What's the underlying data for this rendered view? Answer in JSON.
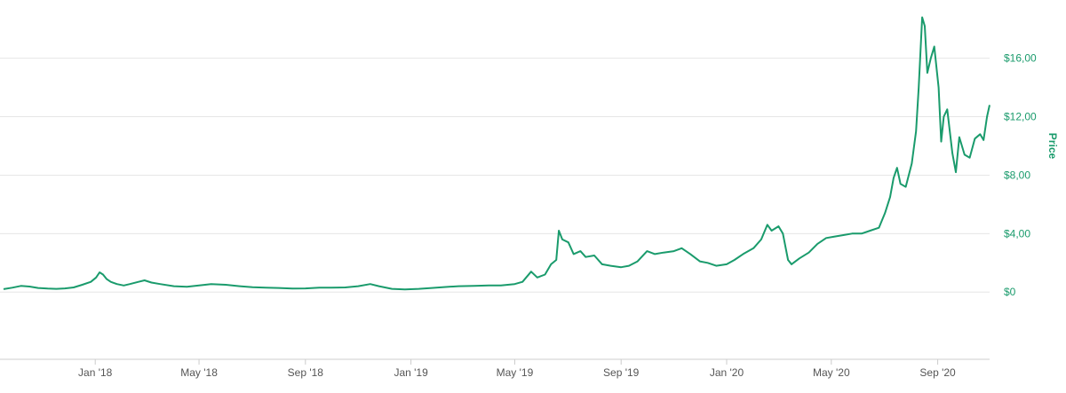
{
  "chart_data": {
    "type": "line",
    "title": "",
    "xlabel": "",
    "ylabel": "Price",
    "ylim": [
      -4.6,
      19.5
    ],
    "xlim": [
      "2017-09-17",
      "2020-10-31"
    ],
    "grid": true,
    "legend": "none",
    "colors": {
      "line": "#1a9b6c",
      "y_axis_text": "#1a9b6c",
      "grid": "#e6e6e6",
      "x_axis_text": "#555555",
      "axis_line": "#cccccc"
    },
    "x_ticks": [
      {
        "date": "2018-01-01",
        "label": "Jan '18"
      },
      {
        "date": "2018-05-01",
        "label": "May '18"
      },
      {
        "date": "2018-09-01",
        "label": "Sep '18"
      },
      {
        "date": "2019-01-01",
        "label": "Jan '19"
      },
      {
        "date": "2019-05-01",
        "label": "May '19"
      },
      {
        "date": "2019-09-01",
        "label": "Sep '19"
      },
      {
        "date": "2020-01-01",
        "label": "Jan '20"
      },
      {
        "date": "2020-05-01",
        "label": "May '20"
      },
      {
        "date": "2020-09-01",
        "label": "Sep '20"
      }
    ],
    "y_ticks": [
      {
        "value": 0,
        "label": "$0"
      },
      {
        "value": 4,
        "label": "$4,00"
      },
      {
        "value": 8,
        "label": "$8,00"
      },
      {
        "value": 12,
        "label": "$12,00"
      },
      {
        "value": 16,
        "label": "$16,00"
      }
    ],
    "series": [
      {
        "points": [
          [
            "2017-09-17",
            0.2
          ],
          [
            "2017-09-27",
            0.3
          ],
          [
            "2017-10-07",
            0.42
          ],
          [
            "2017-10-17",
            0.38
          ],
          [
            "2017-10-27",
            0.28
          ],
          [
            "2017-11-07",
            0.24
          ],
          [
            "2017-11-17",
            0.22
          ],
          [
            "2017-11-27",
            0.25
          ],
          [
            "2017-12-07",
            0.32
          ],
          [
            "2017-12-17",
            0.5
          ],
          [
            "2017-12-27",
            0.7
          ],
          [
            "2018-01-02",
            1.0
          ],
          [
            "2018-01-06",
            1.35
          ],
          [
            "2018-01-10",
            1.2
          ],
          [
            "2018-01-14",
            0.9
          ],
          [
            "2018-01-19",
            0.7
          ],
          [
            "2018-01-26",
            0.55
          ],
          [
            "2018-02-03",
            0.45
          ],
          [
            "2018-02-10",
            0.55
          ],
          [
            "2018-02-20",
            0.7
          ],
          [
            "2018-02-27",
            0.8
          ],
          [
            "2018-03-07",
            0.65
          ],
          [
            "2018-03-17",
            0.55
          ],
          [
            "2018-04-02",
            0.4
          ],
          [
            "2018-04-17",
            0.36
          ],
          [
            "2018-05-01",
            0.45
          ],
          [
            "2018-05-15",
            0.55
          ],
          [
            "2018-06-01",
            0.5
          ],
          [
            "2018-06-17",
            0.4
          ],
          [
            "2018-07-02",
            0.33
          ],
          [
            "2018-07-17",
            0.3
          ],
          [
            "2018-08-01",
            0.28
          ],
          [
            "2018-08-17",
            0.24
          ],
          [
            "2018-09-01",
            0.25
          ],
          [
            "2018-09-17",
            0.3
          ],
          [
            "2018-10-01",
            0.3
          ],
          [
            "2018-10-17",
            0.32
          ],
          [
            "2018-11-01",
            0.4
          ],
          [
            "2018-11-15",
            0.55
          ],
          [
            "2018-11-25",
            0.4
          ],
          [
            "2018-12-10",
            0.22
          ],
          [
            "2018-12-25",
            0.18
          ],
          [
            "2019-01-10",
            0.22
          ],
          [
            "2019-01-25",
            0.28
          ],
          [
            "2019-02-10",
            0.35
          ],
          [
            "2019-02-25",
            0.4
          ],
          [
            "2019-03-15",
            0.42
          ],
          [
            "2019-04-01",
            0.45
          ],
          [
            "2019-04-15",
            0.45
          ],
          [
            "2019-05-01",
            0.55
          ],
          [
            "2019-05-10",
            0.7
          ],
          [
            "2019-05-20",
            1.4
          ],
          [
            "2019-05-27",
            1.0
          ],
          [
            "2019-06-05",
            1.2
          ],
          [
            "2019-06-12",
            1.9
          ],
          [
            "2019-06-18",
            2.2
          ],
          [
            "2019-06-21",
            4.2
          ],
          [
            "2019-06-25",
            3.6
          ],
          [
            "2019-07-02",
            3.4
          ],
          [
            "2019-07-08",
            2.6
          ],
          [
            "2019-07-16",
            2.8
          ],
          [
            "2019-07-22",
            2.4
          ],
          [
            "2019-08-01",
            2.5
          ],
          [
            "2019-08-10",
            1.9
          ],
          [
            "2019-08-20",
            1.8
          ],
          [
            "2019-09-01",
            1.7
          ],
          [
            "2019-09-10",
            1.8
          ],
          [
            "2019-09-20",
            2.1
          ],
          [
            "2019-10-01",
            2.8
          ],
          [
            "2019-10-10",
            2.6
          ],
          [
            "2019-10-20",
            2.7
          ],
          [
            "2019-11-01",
            2.8
          ],
          [
            "2019-11-10",
            3.0
          ],
          [
            "2019-11-20",
            2.6
          ],
          [
            "2019-12-01",
            2.1
          ],
          [
            "2019-12-10",
            2.0
          ],
          [
            "2019-12-20",
            1.8
          ],
          [
            "2020-01-01",
            1.9
          ],
          [
            "2020-01-10",
            2.2
          ],
          [
            "2020-01-20",
            2.6
          ],
          [
            "2020-02-01",
            3.0
          ],
          [
            "2020-02-10",
            3.6
          ],
          [
            "2020-02-17",
            4.6
          ],
          [
            "2020-02-22",
            4.2
          ],
          [
            "2020-03-01",
            4.5
          ],
          [
            "2020-03-06",
            4.0
          ],
          [
            "2020-03-12",
            2.2
          ],
          [
            "2020-03-16",
            1.9
          ],
          [
            "2020-03-25",
            2.3
          ],
          [
            "2020-04-05",
            2.7
          ],
          [
            "2020-04-15",
            3.3
          ],
          [
            "2020-04-25",
            3.7
          ],
          [
            "2020-05-05",
            3.8
          ],
          [
            "2020-05-15",
            3.9
          ],
          [
            "2020-05-25",
            4.0
          ],
          [
            "2020-06-05",
            4.0
          ],
          [
            "2020-06-15",
            4.2
          ],
          [
            "2020-06-25",
            4.4
          ],
          [
            "2020-07-02",
            5.4
          ],
          [
            "2020-07-08",
            6.5
          ],
          [
            "2020-07-12",
            7.8
          ],
          [
            "2020-07-16",
            8.5
          ],
          [
            "2020-07-20",
            7.4
          ],
          [
            "2020-07-26",
            7.2
          ],
          [
            "2020-08-02",
            8.8
          ],
          [
            "2020-08-07",
            11.0
          ],
          [
            "2020-08-10",
            14.0
          ],
          [
            "2020-08-14",
            18.8
          ],
          [
            "2020-08-17",
            18.2
          ],
          [
            "2020-08-20",
            15.0
          ],
          [
            "2020-08-24",
            16.0
          ],
          [
            "2020-08-28",
            16.8
          ],
          [
            "2020-09-02",
            14.0
          ],
          [
            "2020-09-05",
            10.3
          ],
          [
            "2020-09-08",
            12.0
          ],
          [
            "2020-09-12",
            12.5
          ],
          [
            "2020-09-18",
            9.5
          ],
          [
            "2020-09-22",
            8.2
          ],
          [
            "2020-09-26",
            10.6
          ],
          [
            "2020-10-02",
            9.4
          ],
          [
            "2020-10-08",
            9.2
          ],
          [
            "2020-10-14",
            10.5
          ],
          [
            "2020-10-20",
            10.8
          ],
          [
            "2020-10-24",
            10.4
          ],
          [
            "2020-10-28",
            12.0
          ],
          [
            "2020-10-31",
            12.8
          ]
        ]
      }
    ]
  }
}
